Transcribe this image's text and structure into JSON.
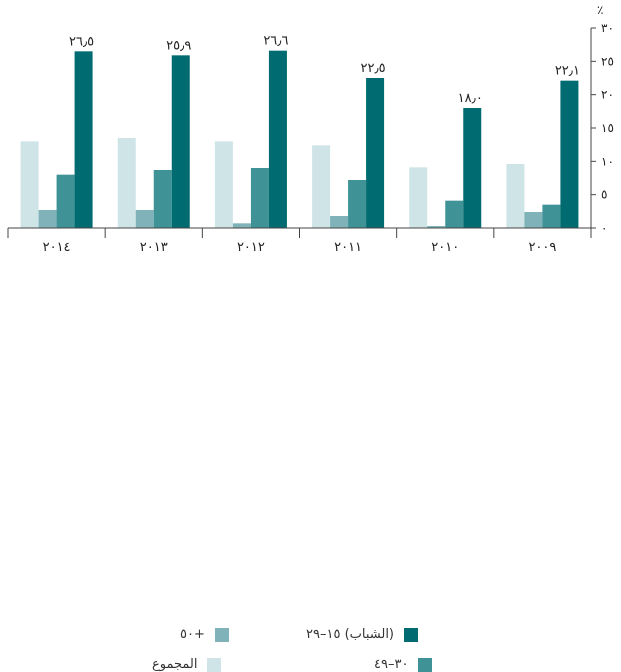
{
  "chart_data": {
    "type": "bar",
    "unit_label": "٪",
    "categories": [
      "٢٠١٤",
      "٢٠١٣",
      "٢٠١٢",
      "٢٠١١",
      "٢٠١٠",
      "٢٠٠٩"
    ],
    "series": [
      {
        "name": "المجموع",
        "color": "#cfe4e6",
        "values": [
          13.0,
          13.5,
          13.0,
          12.4,
          9.1,
          9.6
        ]
      },
      {
        "name": "+٥٠",
        "color": "#7fb3b9",
        "values": [
          2.7,
          2.7,
          0.7,
          1.8,
          0.3,
          2.4
        ]
      },
      {
        "name": "٣٠–٤٩",
        "color": "#3f9296",
        "values": [
          8.0,
          8.7,
          9.0,
          7.2,
          4.1,
          3.5
        ]
      },
      {
        "name": "(الشباب) ١٥–٢٩",
        "color": "#006b70",
        "values": [
          26.5,
          25.9,
          26.6,
          22.5,
          18.0,
          22.1
        ]
      }
    ],
    "data_labels": [
      "٢٦٫٥",
      "٢٥٫٩",
      "٢٦٫٦",
      "٢٢٫٥",
      "١٨٫٠",
      "٢٢٫١"
    ],
    "y_ticks": [
      "٠",
      "٥",
      "١٠",
      "١٥",
      "٢٠",
      "٢٥",
      "٣٠"
    ],
    "ylim": [
      0,
      30
    ],
    "y_axis_side": "right",
    "grid": false,
    "legend_position": "bottom"
  },
  "legend": {
    "items": [
      {
        "label": "(الشباب) ١٥–٢٩",
        "color": "#006b70"
      },
      {
        "label": "+٥٠",
        "color": "#7fb3b9"
      },
      {
        "label": "٣٠–٤٩",
        "color": "#3f9296"
      },
      {
        "label": "المجموع",
        "color": "#cfe4e6"
      }
    ]
  }
}
